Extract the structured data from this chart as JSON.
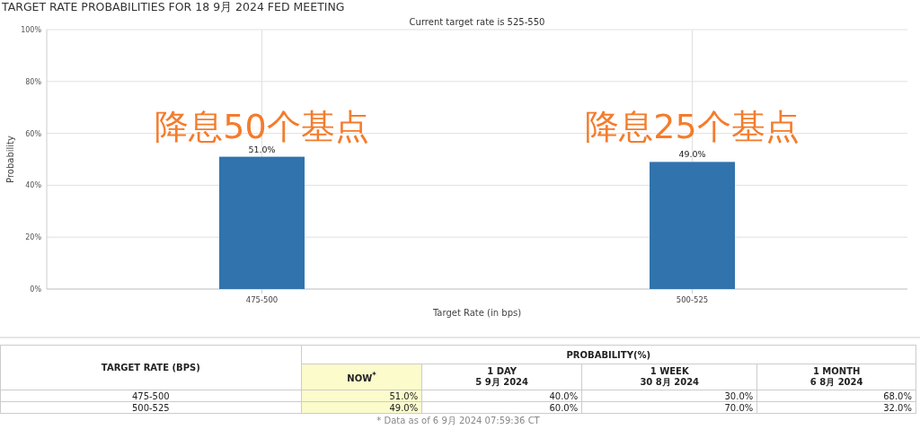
{
  "chart_data": [
    {
      "type": "bar",
      "title": "TARGET RATE PROBABILITIES FOR 18 9月 2024 FED MEETING",
      "subtitle": "Current target rate is 525-550",
      "xlabel": "Target Rate (in bps)",
      "ylabel": "Probability",
      "categories": [
        "475-500",
        "500-525"
      ],
      "values": [
        51.0,
        49.0
      ],
      "color": "#3173ad",
      "ylim": [
        0,
        100
      ],
      "yticks": [
        {
          "value": 0,
          "label": "0%"
        },
        {
          "value": 20,
          "label": "20%"
        },
        {
          "value": 40,
          "label": "40%"
        },
        {
          "value": 60,
          "label": "60%"
        },
        {
          "value": 80,
          "label": "80%"
        },
        {
          "value": 100,
          "label": "100%"
        }
      ],
      "grid": true,
      "value_labels": [
        "51.0%",
        "49.0%"
      ],
      "annotations": [
        "降息50个基点",
        "降息25个基点"
      ]
    },
    {
      "type": "other",
      "annotations": [
        "TARGET RATE (BPS)",
        "PROBABILITY(%)",
        "NOW$^{*}$",
        "1 DAY\n5 9月 2024",
        "1 WEEK\n30 8月 2024",
        "1 MONTH\n6 8月 2024",
        "475-500",
        "51.0%",
        "40.0%",
        "30.0%",
        "68.0%",
        "500-525",
        "49.0%",
        "60.0%",
        "70.0%",
        "32.0%",
        "* Data as of 6 9月 2024 07:59:36 CT"
      ]
    }
  ]
}
